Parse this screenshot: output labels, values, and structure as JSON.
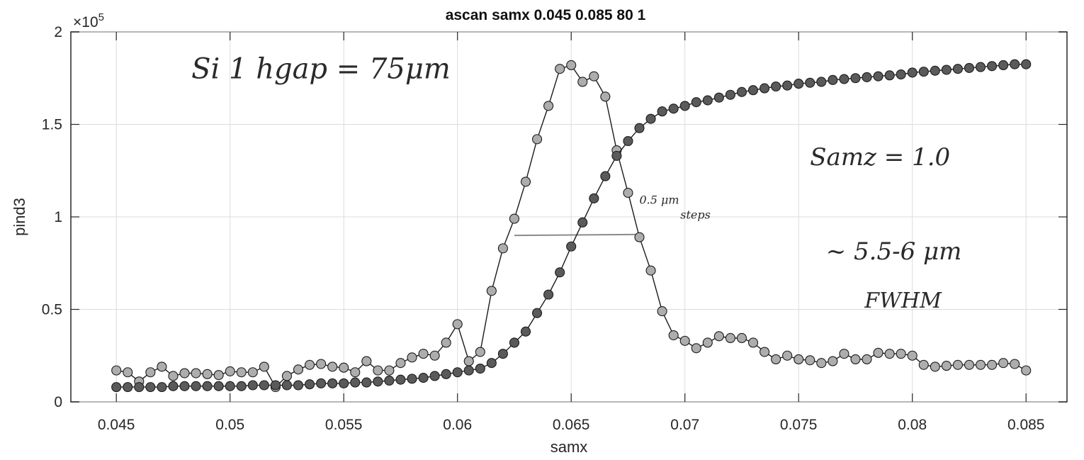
{
  "chart_data": {
    "type": "scatter",
    "title": "ascan  samx 0.045 0.085  80 1",
    "xlabel": "samx",
    "ylabel": "pind3",
    "xlim": [
      0.043,
      0.0868
    ],
    "ylim": [
      0,
      200000
    ],
    "y_exponent_label": "×10",
    "y_exponent_power": "5",
    "grid": true,
    "x_ticks": [
      "0.045",
      "0.05",
      "0.055",
      "0.06",
      "0.065",
      "0.07",
      "0.075",
      "0.08",
      "0.085"
    ],
    "x_tick_values": [
      0.045,
      0.05,
      0.055,
      0.06,
      0.065,
      0.07,
      0.075,
      0.08,
      0.085
    ],
    "y_ticks": [
      "0",
      "0.5",
      "1",
      "1.5",
      "2"
    ],
    "y_tick_values": [
      0,
      50000,
      100000,
      150000,
      200000
    ],
    "x": [
      0.045,
      0.0455,
      0.046,
      0.0465,
      0.047,
      0.0475,
      0.048,
      0.0485,
      0.049,
      0.0495,
      0.05,
      0.0505,
      0.051,
      0.0515,
      0.052,
      0.0525,
      0.053,
      0.0535,
      0.054,
      0.0545,
      0.055,
      0.0555,
      0.056,
      0.0565,
      0.057,
      0.0575,
      0.058,
      0.0585,
      0.059,
      0.0595,
      0.06,
      0.0605,
      0.061,
      0.0615,
      0.062,
      0.0625,
      0.063,
      0.0635,
      0.064,
      0.0645,
      0.065,
      0.0655,
      0.066,
      0.0665,
      0.067,
      0.0675,
      0.068,
      0.0685,
      0.069,
      0.0695,
      0.07,
      0.0705,
      0.071,
      0.0715,
      0.072,
      0.0725,
      0.073,
      0.0735,
      0.074,
      0.0745,
      0.075,
      0.0755,
      0.076,
      0.0765,
      0.077,
      0.0775,
      0.078,
      0.0785,
      0.079,
      0.0795,
      0.08,
      0.0805,
      0.081,
      0.0815,
      0.082,
      0.0825,
      0.083,
      0.0835,
      0.084,
      0.0845,
      0.085
    ],
    "series": [
      {
        "color": "#adadad",
        "connected": true,
        "values": [
          17000,
          16000,
          11000,
          16000,
          19000,
          14000,
          15500,
          15500,
          15000,
          14500,
          16500,
          16000,
          16000,
          19000,
          8000,
          14000,
          17500,
          20000,
          20500,
          19000,
          18500,
          16000,
          22000,
          17000,
          17000,
          21000,
          24000,
          26000,
          25000,
          32000,
          42000,
          22000,
          27000,
          60000,
          83000,
          99000,
          119000,
          142000,
          160000,
          180000,
          182000,
          173000,
          176000,
          165000,
          136000,
          113000,
          89000,
          71000,
          49000,
          36000,
          33000,
          29000,
          32000,
          35500,
          34500,
          34500,
          32000,
          27000,
          23000,
          25000,
          23000,
          22500,
          21000,
          22000,
          26000,
          23000,
          23000,
          26500,
          26000,
          26000,
          25000,
          20000,
          19000,
          19500,
          20000,
          20000,
          20000,
          20000,
          21000,
          20500,
          17000
        ]
      },
      {
        "color": "#5a5a5a",
        "connected": true,
        "values": [
          8000,
          8000,
          8000,
          8000,
          8000,
          8500,
          8500,
          8500,
          8500,
          8500,
          8500,
          8500,
          9000,
          9000,
          9000,
          9000,
          9000,
          9500,
          10000,
          10000,
          10000,
          10500,
          10500,
          11000,
          11500,
          12000,
          12500,
          13000,
          14000,
          15000,
          16000,
          17000,
          18000,
          21000,
          26000,
          32000,
          38000,
          48000,
          58000,
          70000,
          84000,
          97000,
          110000,
          122000,
          133000,
          141000,
          148000,
          153000,
          157000,
          158500,
          160000,
          162000,
          163000,
          164500,
          166000,
          167500,
          168500,
          169500,
          170500,
          171000,
          172000,
          172500,
          173000,
          174000,
          174500,
          175000,
          175500,
          176000,
          176500,
          177000,
          178000,
          178500,
          179000,
          179500,
          180000,
          180500,
          181000,
          181500,
          182000,
          182500,
          182500
        ]
      }
    ],
    "fwhm_line": {
      "x": [
        0.0625,
        0.068
      ],
      "y": [
        90000,
        90500
      ]
    },
    "annotations": [
      {
        "text": "Si 1 hgap = 75μm",
        "x": 0.0483,
        "y": 175000
      },
      {
        "text": "Samz = 1.0",
        "x": 0.0755,
        "y": 128000
      },
      {
        "text": "0.5 μm",
        "x": 0.068,
        "y": 107000
      },
      {
        "text": "steps",
        "x": 0.0698,
        "y": 99000
      },
      {
        "text": "~ 5.5-6 μm",
        "x": 0.0762,
        "y": 77000
      },
      {
        "text": "FWHM",
        "x": 0.0779,
        "y": 51000
      }
    ]
  }
}
